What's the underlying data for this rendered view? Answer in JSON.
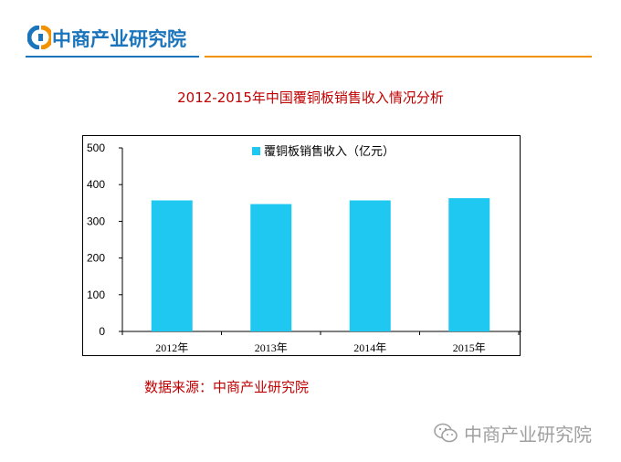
{
  "header": {
    "brand": "中商产业研究院",
    "colors": {
      "blue": "#1b75bc",
      "orange": "#f39200"
    },
    "logo_icon": "cip-logo-icon"
  },
  "title": "2012-2015年中国覆铜板销售收入情况分析",
  "source": "数据来源：中商产业研究院",
  "watermark": {
    "icon": "wechat-icon",
    "text": "中商产业研究院"
  },
  "chart_data": {
    "type": "bar",
    "title": "",
    "categories": [
      "2012年",
      "2013年",
      "2014年",
      "2015年"
    ],
    "series": [
      {
        "name": "覆铜板销售收入（亿元）",
        "values": [
          357,
          347,
          357,
          363
        ],
        "color": "#1ec8f0"
      }
    ],
    "ylim": [
      0,
      500
    ],
    "yticks": [
      "0",
      "100",
      "200",
      "300",
      "400",
      "500"
    ],
    "xlabel": "",
    "ylabel": "",
    "grid": false,
    "legend_position": "top-center"
  }
}
